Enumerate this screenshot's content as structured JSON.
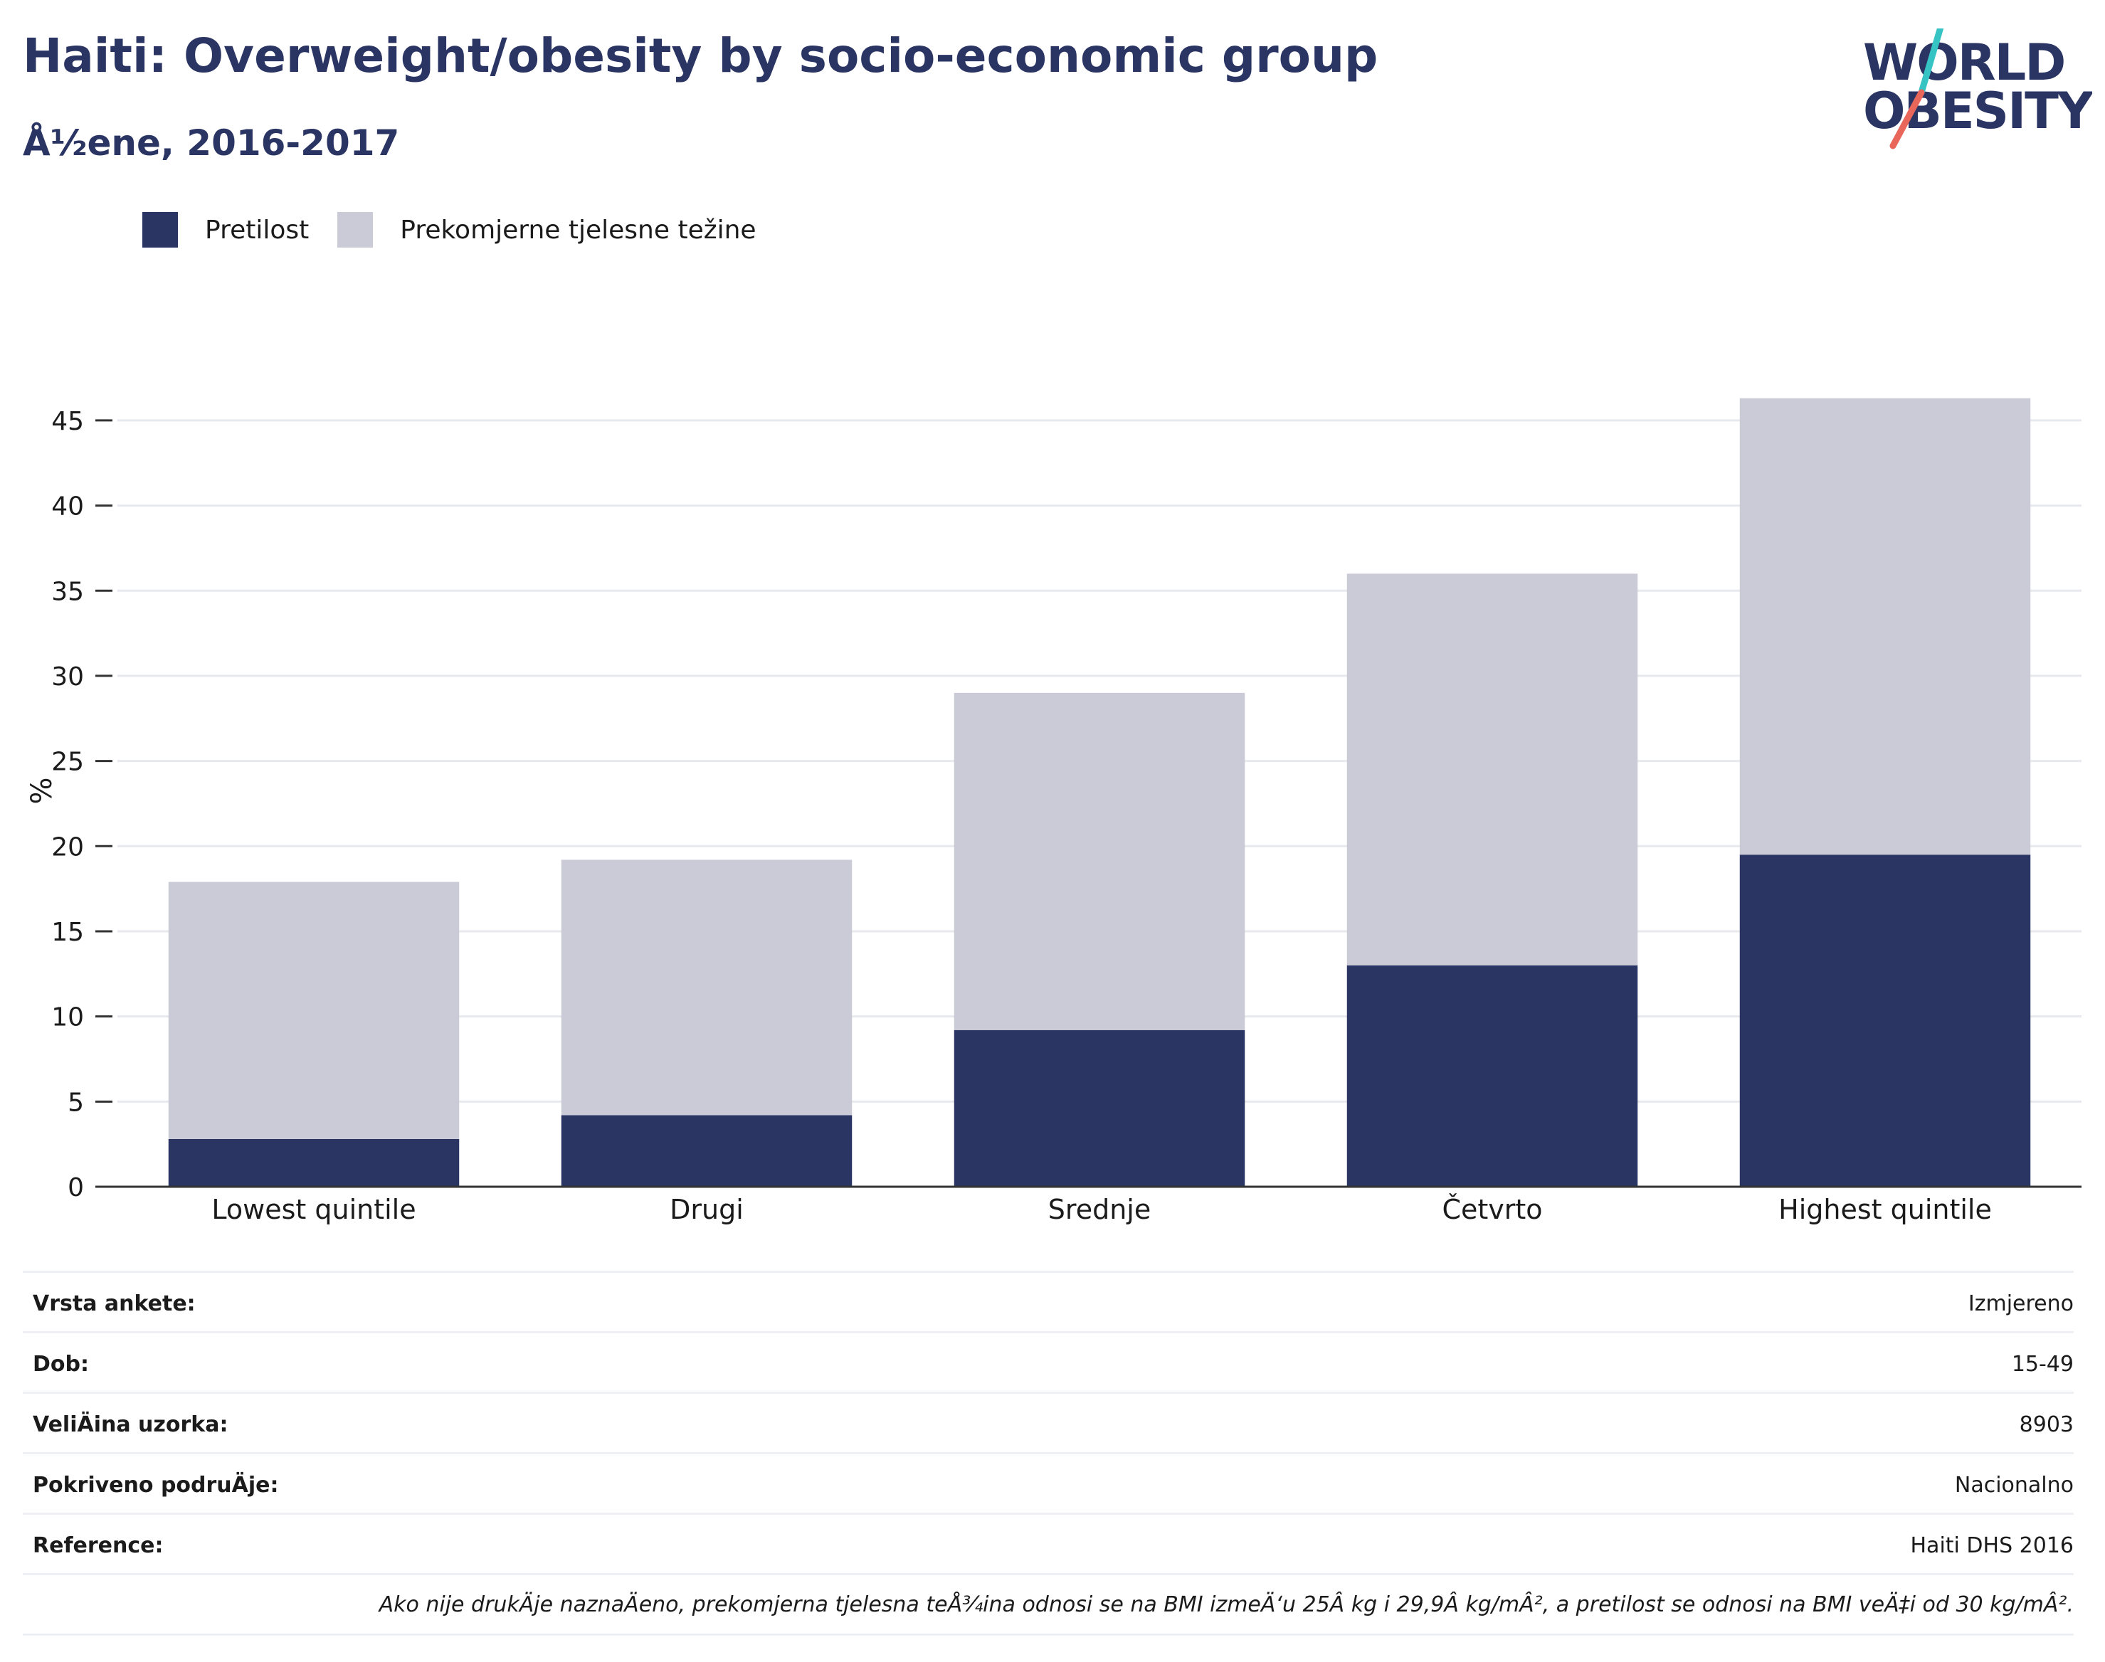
{
  "header": {
    "title": "Haiti: Overweight/obesity by socio-economic group",
    "subtitle": "Å½ene, 2016-2017"
  },
  "logo": {
    "line1": "WORLD",
    "line2": "OBESITY",
    "colors": {
      "text": "#2a3563",
      "slash_top": "#36c3c3",
      "slash_bottom": "#e8665a"
    }
  },
  "legend": [
    {
      "label": "Pretilost",
      "color": "#2a3563"
    },
    {
      "label": "Prekomjerne tjelesne težine",
      "color": "#cacbd7"
    }
  ],
  "chart_data": {
    "type": "bar",
    "stacked": true,
    "categories": [
      "Lowest quintile",
      "Drugi",
      "Srednje",
      "Četvrto",
      "Highest quintile"
    ],
    "series": [
      {
        "name": "Pretilost",
        "color": "#2a3563",
        "values": [
          2.8,
          4.2,
          9.2,
          13.0,
          19.5
        ]
      },
      {
        "name": "Prekomjerne tjelesne težine",
        "color": "#cacbd7",
        "values": [
          15.1,
          15.0,
          19.8,
          23.0,
          26.8
        ]
      }
    ],
    "totals": [
      17.9,
      19.2,
      29.0,
      36.0,
      46.3
    ],
    "ylabel": "%",
    "ylim": [
      0,
      46.5
    ],
    "yticks": [
      0,
      5,
      10,
      15,
      20,
      25,
      30,
      35,
      40,
      45
    ],
    "grid": true,
    "legend_position": "top-left"
  },
  "info": [
    {
      "label": "Vrsta ankete:",
      "value": "Izmjereno"
    },
    {
      "label": "Dob:",
      "value": "15-49"
    },
    {
      "label": "VeliÄ\u001fina uzorka:",
      "value": "8903"
    },
    {
      "label": "Pokriveno podruÄ\u001fje:",
      "value": "Nacionalno"
    },
    {
      "label": "Reference:",
      "value": "Haiti DHS 2016"
    }
  ],
  "note": "Ako nije drukÄ\u001fje naznaÄ\u001feno, prekomjerna tjelesna teÅ¾ina odnosi se na BMI izmeÄ‘u 25Â kg i 29,9Â kg/mÂ², a pretilost se odnosi na BMI veÄ‡i od 30 kg/mÂ²."
}
